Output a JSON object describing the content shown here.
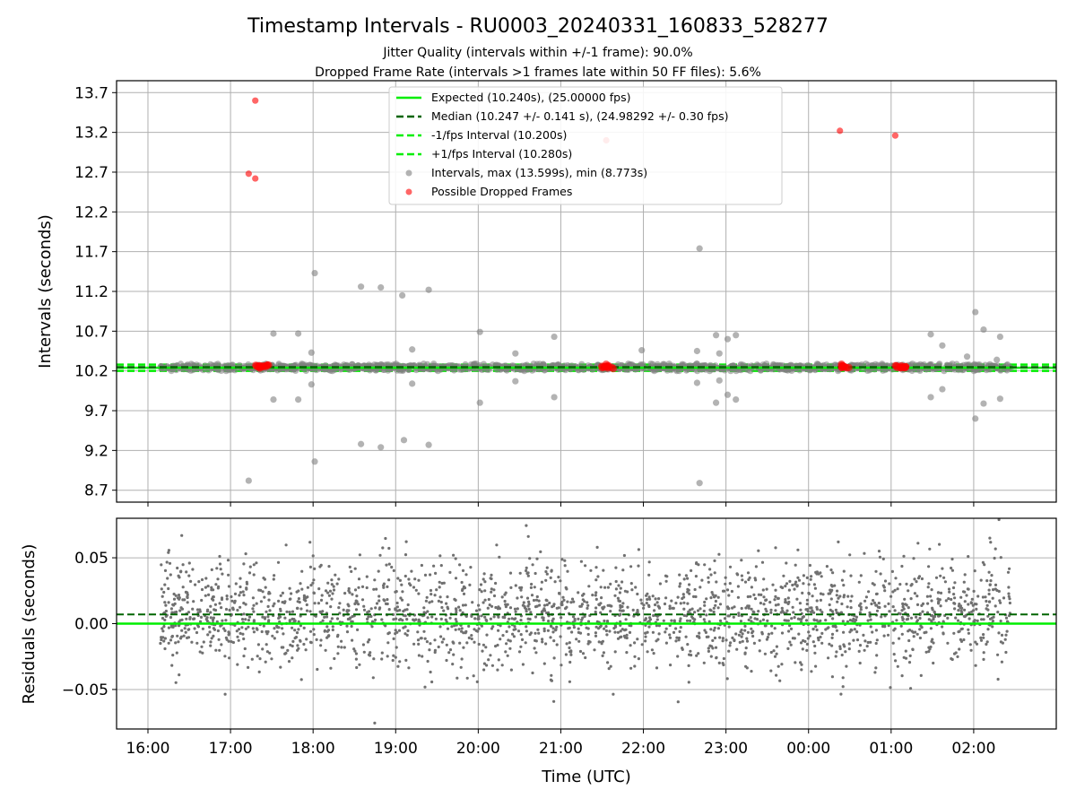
{
  "chart_data": [
    {
      "type": "scatter",
      "title": "Timestamp Intervals - RU0003_20240331_160833_528277",
      "subtitle_lines": [
        "Jitter Quality (intervals within +/-1 frame): 90.0%",
        "Dropped Frame Rate (intervals >1 frames late within 50 FF files): 5.6%"
      ],
      "xlabel": "",
      "ylabel": "Intervals (seconds)",
      "x_axis": "time (UTC, hours since 16:00)",
      "xlim": [
        -0.38,
        11.0
      ],
      "ylim": [
        8.55,
        13.85
      ],
      "x_ticks": [
        0,
        1,
        2,
        3,
        4,
        5,
        6,
        7,
        8,
        9,
        10
      ],
      "x_tick_labels": [
        "16:00",
        "17:00",
        "18:00",
        "19:00",
        "20:00",
        "21:00",
        "22:00",
        "23:00",
        "00:00",
        "01:00",
        "02:00"
      ],
      "y_ticks": [
        8.7,
        9.2,
        9.7,
        10.2,
        10.7,
        11.2,
        11.7,
        12.2,
        12.7,
        13.2,
        13.7
      ],
      "y_tick_labels": [
        "8.7",
        "9.2",
        "9.7",
        "10.2",
        "10.7",
        "11.2",
        "11.7",
        "12.2",
        "12.7",
        "13.2",
        "13.7"
      ],
      "grid": true,
      "legend_position": "top-center",
      "legend": [
        {
          "label": "Expected (10.240s), (25.00000 fps)",
          "kind": "line",
          "color": "#00ee00",
          "dash": false
        },
        {
          "label": "Median (10.247 +/- 0.141 s), (24.98292 +/- 0.30 fps)",
          "kind": "line",
          "color": "#006400",
          "dash": true
        },
        {
          "label": "-1/fps Interval (10.200s)",
          "kind": "line",
          "color": "#00ee00",
          "dash": true
        },
        {
          "label": "+1/fps Interval (10.280s)",
          "kind": "line",
          "color": "#00ee00",
          "dash": true
        },
        {
          "label": "Intervals, max (13.599s), min (8.773s)",
          "kind": "marker",
          "color": "#808080"
        },
        {
          "label": "Possible Dropped Frames",
          "kind": "marker",
          "color": "#ff0000"
        }
      ],
      "reference_lines": {
        "expected": 10.24,
        "median": 10.247,
        "minus_one_fps": 10.2,
        "plus_one_fps": 10.28
      },
      "dense_band": {
        "x_range": [
          0.15,
          10.45
        ],
        "y_center": 10.245,
        "y_spread": 0.045,
        "count": 1300
      },
      "red_clusters": [
        {
          "x": [
            1.3,
            1.48
          ],
          "y": 10.255,
          "count": 14
        },
        {
          "x": [
            5.48,
            5.64
          ],
          "y": 10.255,
          "count": 12
        },
        {
          "x": [
            8.38,
            8.5
          ],
          "y": 10.255,
          "count": 10
        },
        {
          "x": [
            9.03,
            9.18
          ],
          "y": 10.255,
          "count": 12
        }
      ],
      "gray_outliers": [
        [
          1.22,
          8.82
        ],
        [
          2.02,
          9.06
        ],
        [
          2.58,
          9.28
        ],
        [
          2.82,
          9.24
        ],
        [
          3.1,
          9.33
        ],
        [
          3.4,
          9.27
        ],
        [
          6.68,
          8.79
        ],
        [
          2.02,
          11.43
        ],
        [
          2.58,
          11.26
        ],
        [
          2.82,
          11.25
        ],
        [
          3.08,
          11.15
        ],
        [
          3.4,
          11.22
        ],
        [
          6.68,
          11.74
        ],
        [
          5.98,
          10.46
        ],
        [
          1.52,
          10.67
        ],
        [
          1.82,
          10.67
        ],
        [
          1.98,
          10.43
        ],
        [
          1.52,
          9.84
        ],
        [
          1.82,
          9.84
        ],
        [
          1.98,
          10.03
        ],
        [
          3.2,
          10.47
        ],
        [
          3.2,
          10.04
        ],
        [
          4.02,
          10.69
        ],
        [
          4.02,
          9.8
        ],
        [
          4.45,
          10.42
        ],
        [
          4.45,
          10.07
        ],
        [
          4.92,
          10.63
        ],
        [
          4.92,
          9.87
        ],
        [
          6.65,
          10.45
        ],
        [
          6.65,
          10.05
        ],
        [
          6.88,
          10.65
        ],
        [
          6.88,
          9.8
        ],
        [
          6.92,
          10.42
        ],
        [
          6.92,
          10.08
        ],
        [
          7.02,
          10.6
        ],
        [
          7.02,
          9.9
        ],
        [
          7.12,
          10.65
        ],
        [
          7.12,
          9.84
        ],
        [
          9.48,
          10.66
        ],
        [
          9.48,
          9.87
        ],
        [
          9.62,
          10.52
        ],
        [
          9.62,
          9.97
        ],
        [
          10.02,
          10.94
        ],
        [
          10.02,
          9.6
        ],
        [
          10.12,
          10.72
        ],
        [
          10.12,
          9.79
        ],
        [
          10.32,
          10.63
        ],
        [
          10.32,
          9.85
        ],
        [
          9.92,
          10.38
        ],
        [
          10.28,
          10.34
        ]
      ],
      "red_outliers": [
        [
          1.3,
          13.6
        ],
        [
          1.22,
          12.68
        ],
        [
          1.3,
          12.62
        ],
        [
          5.55,
          13.1
        ],
        [
          8.38,
          13.22
        ],
        [
          9.05,
          13.16
        ]
      ],
      "series": [
        {
          "name": "Intervals, max (13.599s), min (8.773s)",
          "color": "#808080"
        },
        {
          "name": "Possible Dropped Frames",
          "color": "#ff0000"
        }
      ]
    },
    {
      "type": "scatter",
      "xlabel": "Time (UTC)",
      "ylabel": "Residuals (seconds)",
      "xlim": [
        -0.38,
        11.0
      ],
      "ylim": [
        -0.08,
        0.08
      ],
      "x_ticks": [
        0,
        1,
        2,
        3,
        4,
        5,
        6,
        7,
        8,
        9,
        10
      ],
      "x_tick_labels": [
        "16:00",
        "17:00",
        "18:00",
        "19:00",
        "20:00",
        "21:00",
        "22:00",
        "23:00",
        "00:00",
        "01:00",
        "02:00"
      ],
      "y_ticks": [
        -0.05,
        0.0,
        0.05
      ],
      "y_tick_labels": [
        "−0.05",
        "0.00",
        "0.05"
      ],
      "grid": true,
      "reference_lines": {
        "zero": 0.0,
        "median_offset": 0.007
      },
      "residual_cloud": {
        "x_range": [
          0.15,
          10.45
        ],
        "center": 0.006,
        "spread": 0.027,
        "count": 2300
      },
      "series": [
        {
          "name": "Residuals",
          "color": "#707070"
        }
      ]
    }
  ]
}
